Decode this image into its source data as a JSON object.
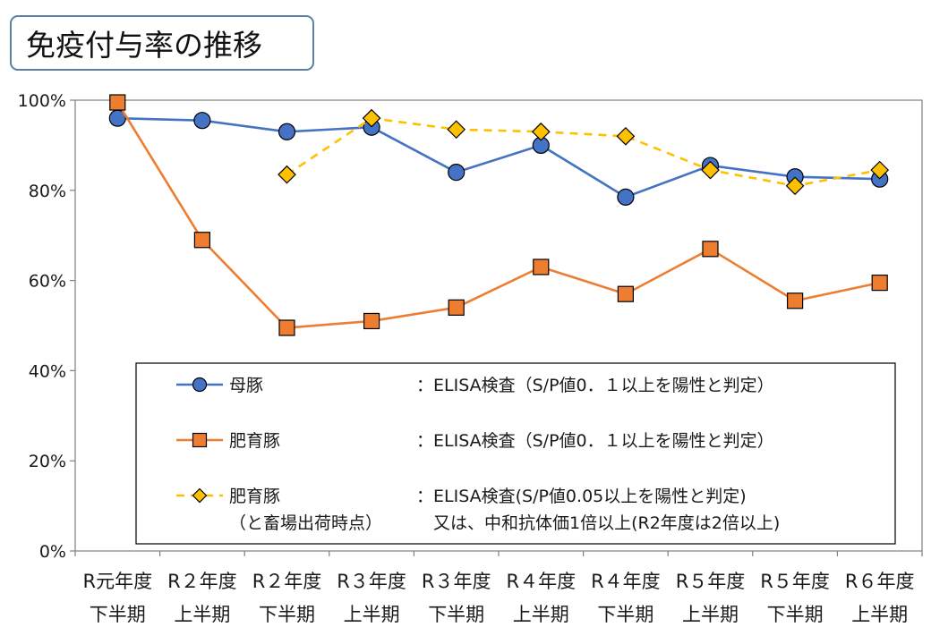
{
  "title": "免疫付与率の推移",
  "chart_data": {
    "type": "line",
    "title": "免疫付与率の推移",
    "categories": [
      [
        "R元年度",
        "下半期"
      ],
      [
        "R２年度",
        "上半期"
      ],
      [
        "R２年度",
        "下半期"
      ],
      [
        "R３年度",
        "上半期"
      ],
      [
        "R３年度",
        "下半期"
      ],
      [
        "R４年度",
        "上半期"
      ],
      [
        "R４年度",
        "下半期"
      ],
      [
        "R５年度",
        "上半期"
      ],
      [
        "R５年度",
        "下半期"
      ],
      [
        "R６年度",
        "上半期"
      ]
    ],
    "ylim": [
      0,
      100
    ],
    "yticks": [
      "0%",
      "20%",
      "40%",
      "60%",
      "80%",
      "100%"
    ],
    "grid": false,
    "legend_position": "inside-bottom",
    "series": [
      {
        "name": "母豚",
        "description": "：ELISA検査（S/P値0．１以上を陽性と判定）",
        "marker": "circle",
        "line": "solid",
        "color": "#4472c4",
        "values": [
          96,
          95.5,
          93,
          94,
          84,
          90,
          78.5,
          85.5,
          83,
          82.5
        ]
      },
      {
        "name": "肥育豚",
        "description": "：ELISA検査（S/P値0．１以上を陽性と判定）",
        "marker": "square",
        "line": "solid",
        "color": "#ed7d31",
        "values": [
          99.5,
          69,
          49.5,
          51,
          54,
          63,
          57,
          67,
          55.5,
          59.5
        ]
      },
      {
        "name": "肥育豚",
        "name_line2": "（と畜場出荷時点）",
        "description": "：ELISA検査(S/P値0.05以上を陽性と判定)",
        "description_line2": "又は、中和抗体価1倍以上(R2年度は2倍以上)",
        "marker": "diamond",
        "line": "dashed",
        "color": "#ffc000",
        "values": [
          null,
          null,
          83.5,
          96,
          93.5,
          93,
          92,
          84.5,
          81,
          84.5
        ]
      }
    ]
  }
}
